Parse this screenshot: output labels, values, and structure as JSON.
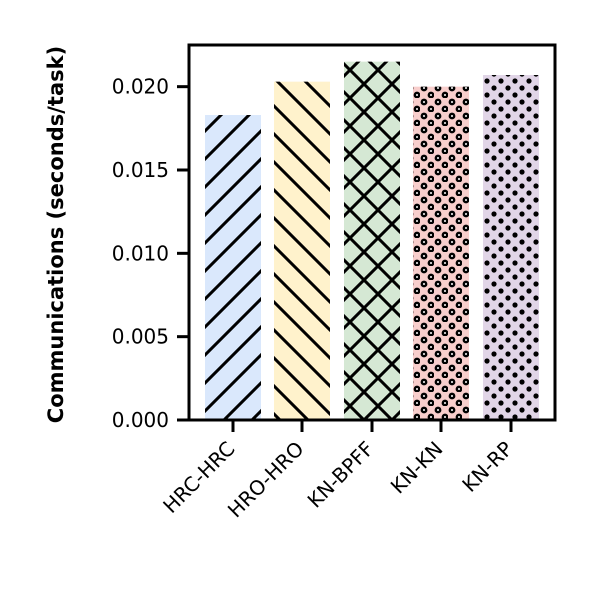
{
  "chart_data": {
    "type": "bar",
    "title": "",
    "xlabel": "",
    "ylabel": "Communications (seconds/task)",
    "ylim": [
      0,
      0.0225
    ],
    "yticks": [
      "0.000",
      "0.005",
      "0.010",
      "0.015",
      "0.020"
    ],
    "grid": false,
    "categories": [
      "HRC-HRC",
      "HRO-HRO",
      "KN-BPFF",
      "KN-KN",
      "KN-RP"
    ],
    "values": [
      0.0183,
      0.0203,
      0.0215,
      0.02,
      0.0207
    ],
    "bar_colors": [
      "#dae8fc",
      "#fff2cc",
      "#d5e8d4",
      "#f8cecc",
      "#e1d5e7"
    ],
    "bar_hatches": [
      "forward-diagonal",
      "back-diagonal",
      "cross-diagonal",
      "ringed-dots",
      "dots"
    ]
  }
}
